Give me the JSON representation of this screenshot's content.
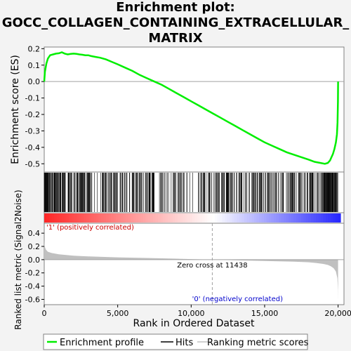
{
  "title_lines": [
    "Enrichment plot:",
    "GOCC_COLLAGEN_CONTAINING_EXTRACELLULAR_",
    "MATRIX"
  ],
  "colors": {
    "enrichment_line": "#00ee00",
    "hits": "#000000",
    "metric_fill": "#c0c0c0",
    "positive_label": "#cc0000",
    "negative_label": "#0000cc",
    "pos_band": "#ff3030",
    "neg_band": "#3030ff"
  },
  "chart_data": [
    {
      "type": "line",
      "name": "enrichment-profile",
      "ylabel": "Enrichment score (ES)",
      "ylim": [
        -0.55,
        0.21
      ],
      "yticks": [
        "0.2",
        "0.1",
        "0.0",
        "-0.1",
        "-0.2",
        "-0.3",
        "-0.4",
        "-0.5"
      ],
      "ytick_values": [
        0.2,
        0.1,
        0.0,
        -0.1,
        -0.2,
        -0.3,
        -0.4,
        -0.5
      ],
      "grid": false,
      "series": [
        {
          "x": [
            0,
            50,
            150,
            250,
            400,
            600,
            800,
            1000,
            1200,
            1400,
            1600,
            1800,
            2000,
            2200,
            2400,
            2600,
            2800,
            3000,
            3200,
            3500,
            3800,
            4200,
            4600,
            5000,
            5500,
            6000,
            6500,
            7000,
            7500,
            8000,
            8500,
            9000,
            9500,
            10000,
            10500,
            11000,
            11500,
            12000,
            12500,
            13000,
            13500,
            14000,
            14500,
            15000,
            15500,
            16000,
            16500,
            17000,
            17500,
            18000,
            18400,
            18800,
            19100,
            19300,
            19450,
            19550,
            19650,
            19750,
            19850,
            19920,
            19960,
            19990,
            20000
          ],
          "y": [
            0.0,
            0.06,
            0.11,
            0.14,
            0.16,
            0.165,
            0.17,
            0.172,
            0.178,
            0.17,
            0.165,
            0.168,
            0.17,
            0.168,
            0.165,
            0.163,
            0.16,
            0.16,
            0.155,
            0.15,
            0.145,
            0.135,
            0.12,
            0.105,
            0.085,
            0.065,
            0.04,
            0.02,
            0.0,
            -0.02,
            -0.045,
            -0.07,
            -0.095,
            -0.12,
            -0.145,
            -0.17,
            -0.195,
            -0.22,
            -0.245,
            -0.27,
            -0.295,
            -0.32,
            -0.345,
            -0.37,
            -0.39,
            -0.41,
            -0.43,
            -0.445,
            -0.46,
            -0.475,
            -0.488,
            -0.495,
            -0.5,
            -0.495,
            -0.48,
            -0.46,
            -0.44,
            -0.41,
            -0.37,
            -0.32,
            -0.25,
            -0.12,
            0.0
          ]
        }
      ]
    },
    {
      "type": "bar",
      "name": "ranked-list-metric",
      "ylabel": "Ranked list metric (Signal2Noise)",
      "xlabel": "Rank in Ordered Dataset",
      "xlim": [
        0,
        20400
      ],
      "xticks": [
        "0",
        "5,000",
        "10,000",
        "15,000",
        "20,000"
      ],
      "xtick_values": [
        0,
        5000,
        10000,
        15000,
        20000
      ],
      "ylim": [
        -0.68,
        0.55
      ],
      "yticks": [
        "0.4",
        "0.2",
        "0.0",
        "-0.2",
        "-0.4",
        "-0.6"
      ],
      "ytick_values": [
        0.4,
        0.2,
        0.0,
        -0.2,
        -0.4,
        -0.6
      ],
      "zero_cross": 11438,
      "zero_cross_label": "Zero cross at 11438",
      "positive_label": "'1' (positively correlated)",
      "negative_label": "'0' (negatively correlated)",
      "x": [
        0,
        20,
        60,
        120,
        250,
        500,
        1000,
        2000,
        3000,
        5000,
        7000,
        9000,
        11438,
        13000,
        15000,
        17000,
        18000,
        18500,
        19000,
        19300,
        19500,
        19700,
        19850,
        19950,
        19990,
        20000
      ],
      "values": [
        0.3,
        0.22,
        0.18,
        0.15,
        0.12,
        0.1,
        0.08,
        0.06,
        0.05,
        0.035,
        0.025,
        0.015,
        0.0,
        -0.01,
        -0.02,
        -0.03,
        -0.04,
        -0.05,
        -0.065,
        -0.08,
        -0.1,
        -0.13,
        -0.18,
        -0.28,
        -0.45,
        -0.62
      ]
    }
  ],
  "hits_positions": [
    "dense regions: 0-300 many; 300-7500 moderate-dense; 7500-11500 mixed; 11500-20000 dense near end"
  ],
  "legend": {
    "items": [
      "Enrichment profile",
      "Hits",
      "Ranking metric scores"
    ]
  }
}
